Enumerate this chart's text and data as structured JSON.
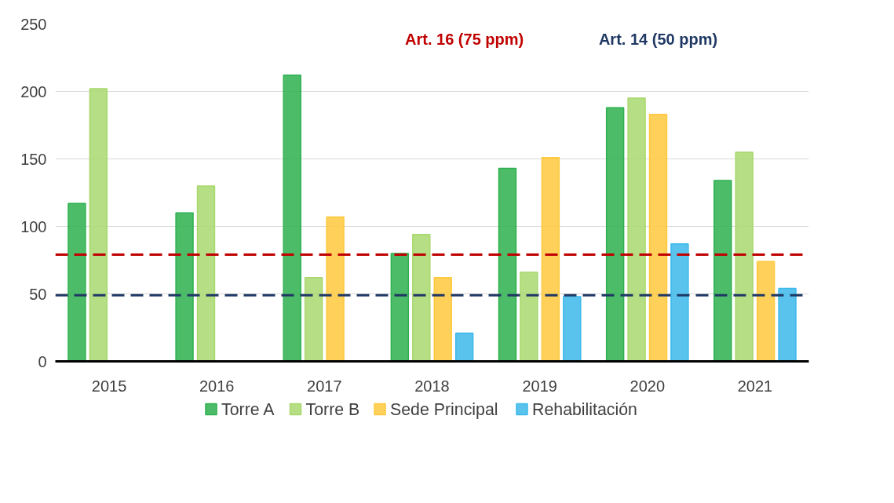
{
  "chart_data": {
    "type": "bar",
    "categories": [
      "2015",
      "2016",
      "2017",
      "2018",
      "2019",
      "2020",
      "2021"
    ],
    "series": [
      {
        "name": "Torre A",
        "color": "#2eb04f",
        "values": [
          117,
          110,
          212,
          80,
          143,
          188,
          134
        ]
      },
      {
        "name": "Torre B",
        "color": "#a9d86e",
        "values": [
          202,
          130,
          62,
          94,
          66,
          195,
          155
        ]
      },
      {
        "name": "Sede Principal",
        "color": "#ffc83d",
        "values": [
          null,
          null,
          107,
          62,
          151,
          183,
          74
        ]
      },
      {
        "name": "Rehabilitación",
        "color": "#3cb9ea",
        "values": [
          null,
          null,
          null,
          21,
          48,
          87,
          54
        ]
      }
    ],
    "ylim": [
      0,
      250
    ],
    "yticks": [
      0,
      50,
      100,
      150,
      200,
      250
    ],
    "grid": "y",
    "legend": "bottom",
    "ref_lines": [
      {
        "axis": "y",
        "value": 79,
        "label": "Art. 16 (75 ppm)",
        "color": "#c00000",
        "line_style": "dashed"
      },
      {
        "axis": "y",
        "value": 49,
        "label": "Art. 14 (50 ppm)",
        "color": "#1f3864",
        "line_style": "dashed"
      }
    ]
  }
}
